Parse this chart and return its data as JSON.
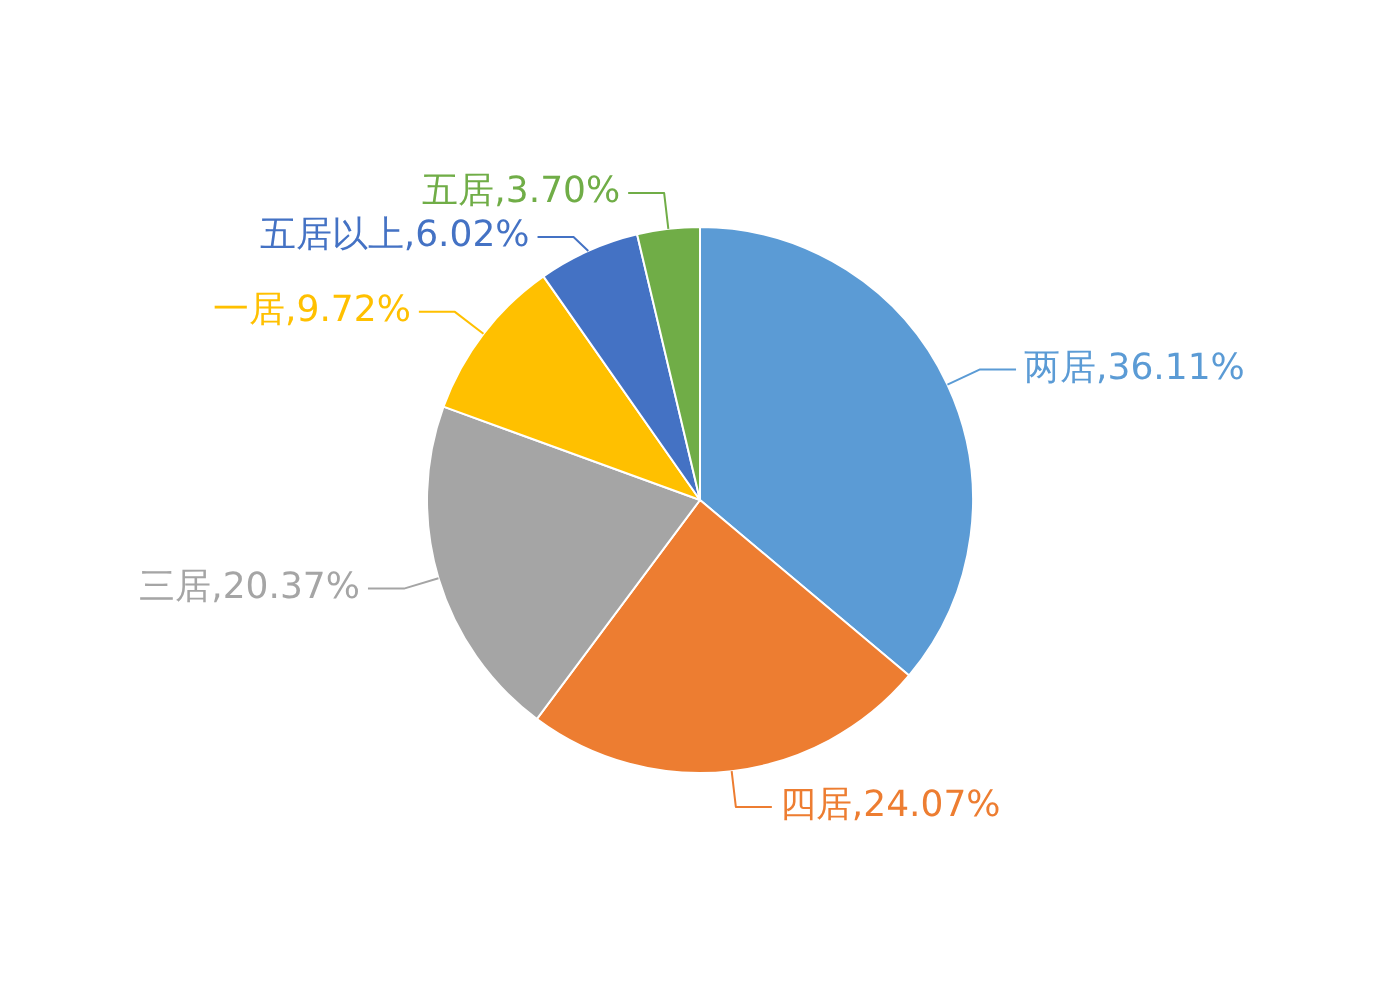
{
  "chart_data": {
    "type": "pie",
    "categories": [
      "两居",
      "四居",
      "三居",
      "一居",
      "五居以上",
      "五居"
    ],
    "values": [
      36.11,
      24.07,
      20.37,
      9.72,
      6.02,
      3.7
    ],
    "colors": [
      "#5b9bd5",
      "#ed7d31",
      "#a5a5a5",
      "#ffc000",
      "#4472c4",
      "#70ad47"
    ],
    "value_labels": [
      "36.11%",
      "24.07%",
      "20.37%",
      "9.72%",
      "6.02%",
      "3.70%"
    ],
    "legend": false
  }
}
